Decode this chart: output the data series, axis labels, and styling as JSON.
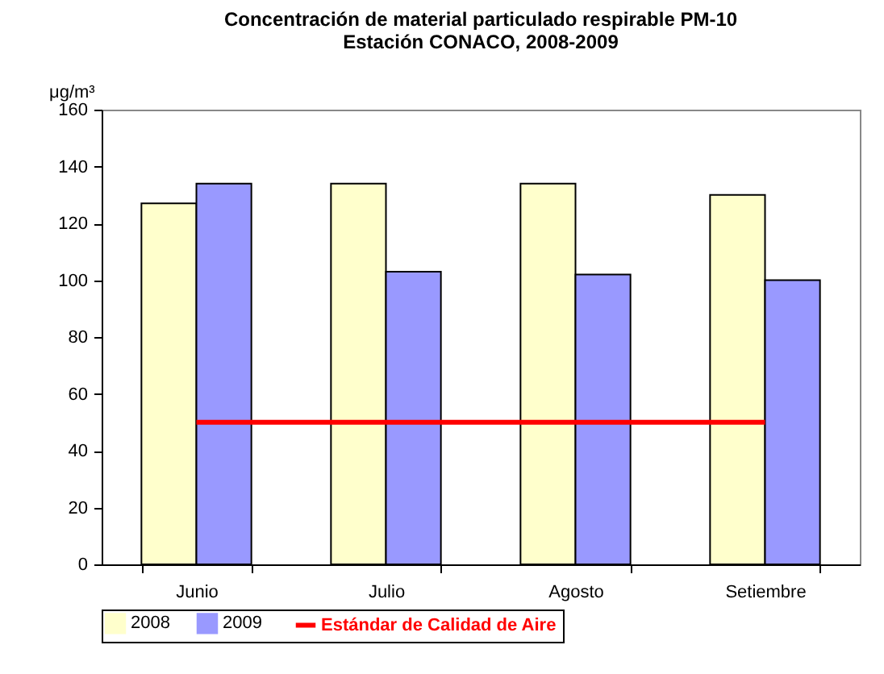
{
  "chart_data": {
    "type": "bar",
    "title": "Concentración de material particulado respirable PM-10",
    "subtitle": "Estación CONACO, 2008-2009",
    "ylabel": "μg/m³",
    "categories": [
      "Junio",
      "Julio",
      "Agosto",
      "Setiembre"
    ],
    "series": [
      {
        "name": "2008",
        "color": "#ffffcc",
        "values": [
          127,
          134,
          134,
          130
        ]
      },
      {
        "name": "2009",
        "color": "#9999ff",
        "values": [
          134,
          103,
          102,
          100
        ]
      },
      {
        "name": "Estándar de Calidad de Aire",
        "type": "line",
        "color": "#ff0000",
        "values": [
          50,
          50,
          50,
          50
        ]
      }
    ],
    "ylim": [
      0,
      160
    ],
    "yticks": [
      0,
      20,
      40,
      60,
      80,
      100,
      120,
      140,
      160
    ],
    "legend": "bottom",
    "marker": "none",
    "line_style": "solid"
  }
}
